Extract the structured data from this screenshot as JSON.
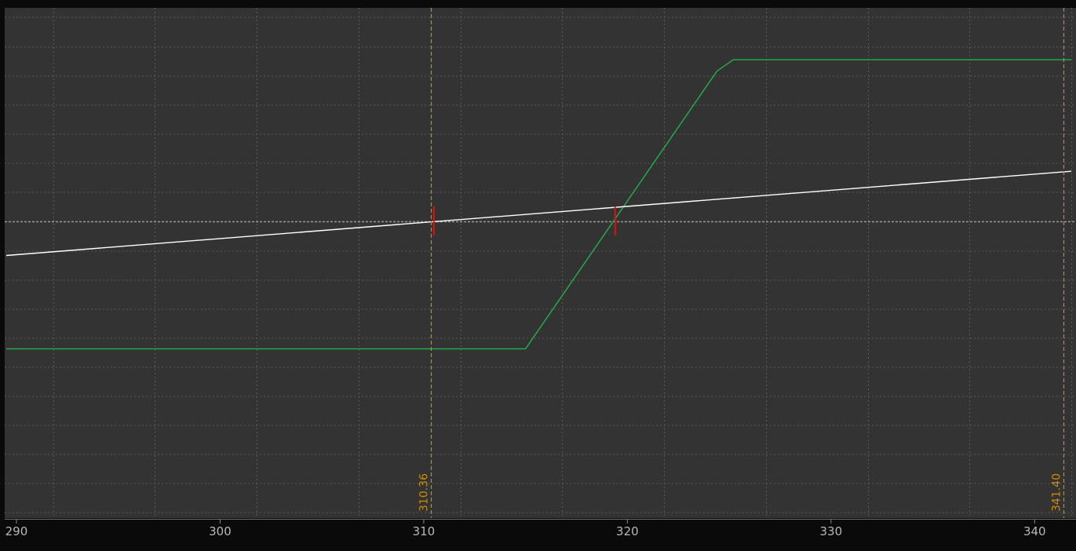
{
  "chart_data": {
    "type": "line",
    "title": "",
    "xlabel": "",
    "ylabel": "",
    "xlim": [
      289.5,
      341.8
    ],
    "ylim": [
      -1,
      1
    ],
    "x_ticks": [
      {
        "value": 290,
        "label": "290"
      },
      {
        "value": 300,
        "label": "300"
      },
      {
        "value": 310,
        "label": "310"
      },
      {
        "value": 320,
        "label": "320"
      },
      {
        "value": 330,
        "label": "330"
      },
      {
        "value": 340,
        "label": "340"
      }
    ],
    "grid": true,
    "zero_line": 0,
    "series": [
      {
        "color": "#21b04b",
        "x": [
          289.5,
          315.0,
          324.4,
          325.2,
          341.8
        ],
        "y": [
          -0.56,
          -0.56,
          0.66,
          0.71,
          0.71
        ]
      },
      {
        "color": "#ffffff",
        "x": [
          289.5,
          341.8
        ],
        "y": [
          -0.15,
          0.22
        ]
      }
    ],
    "markers": [
      {
        "x": 310.36,
        "label": "310.36",
        "color": "#d08a00"
      },
      {
        "x": 341.4,
        "label": "341.40",
        "color": "#d08a00"
      }
    ],
    "crossings": [
      {
        "x": 310.5,
        "color": "#e01010"
      },
      {
        "x": 319.4,
        "color": "#e01010"
      }
    ],
    "colors": {
      "background": "#0a0a0a",
      "plot_area": "#333333",
      "grid": "#5a5a5a",
      "zero_line": "#9a9a9a",
      "tick_text": "#b8b8b8"
    }
  }
}
